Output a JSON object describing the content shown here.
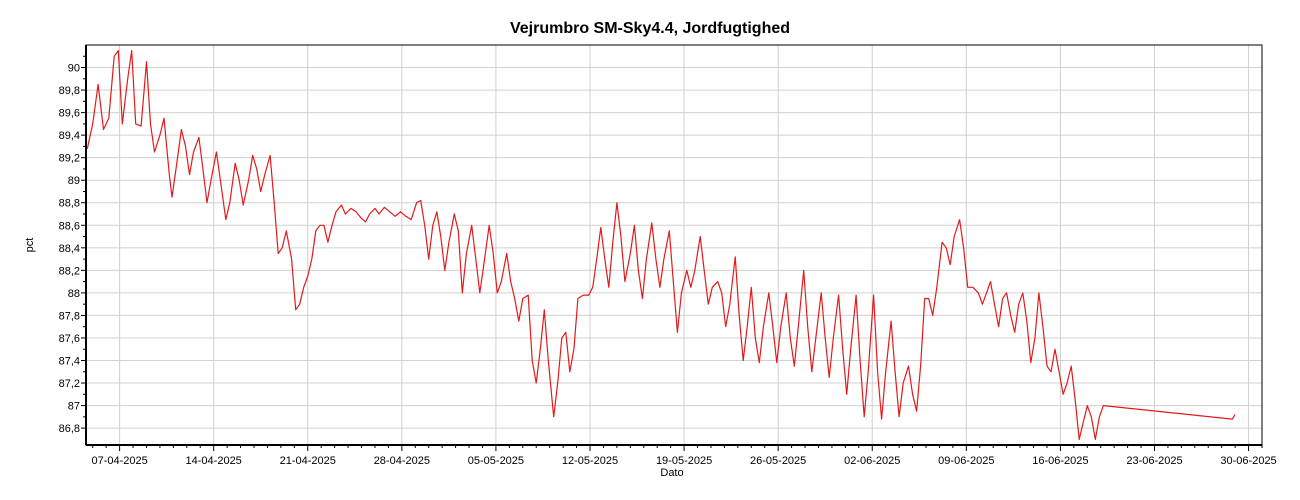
{
  "chart_data": {
    "type": "line",
    "title": "Vejrumbro SM-Sky4.4, Jordfugtighed",
    "xlabel": "Dato",
    "ylabel": "pct",
    "x_ticks": [
      "07-04-2025",
      "14-04-2025",
      "21-04-2025",
      "28-04-2025",
      "05-05-2025",
      "12-05-2025",
      "19-05-2025",
      "26-05-2025",
      "02-06-2025",
      "09-06-2025",
      "16-06-2025",
      "23-06-2025",
      "30-06-2025"
    ],
    "y_ticks": [
      "86,8",
      "87",
      "87,2",
      "87,4",
      "87,6",
      "87,8",
      "88",
      "88,2",
      "88,4",
      "88,6",
      "88,8",
      "89",
      "89,2",
      "89,4",
      "89,6",
      "89,8",
      "90"
    ],
    "xlim_days": [
      -2.5,
      85.0
    ],
    "ylim": [
      86.65,
      90.2
    ],
    "grid": true,
    "legend": "none",
    "line_color": "#e31a1c",
    "series": [
      {
        "points": [
          [
            -2.4,
            89.28
          ],
          [
            -2.0,
            89.5
          ],
          [
            -1.6,
            89.85
          ],
          [
            -1.2,
            89.45
          ],
          [
            -0.8,
            89.55
          ],
          [
            -0.4,
            90.1
          ],
          [
            -0.1,
            90.15
          ],
          [
            0.2,
            89.5
          ],
          [
            0.6,
            89.9
          ],
          [
            0.9,
            90.15
          ],
          [
            1.2,
            89.5
          ],
          [
            1.6,
            89.48
          ],
          [
            2.0,
            90.05
          ],
          [
            2.3,
            89.5
          ],
          [
            2.6,
            89.25
          ],
          [
            3.0,
            89.4
          ],
          [
            3.3,
            89.55
          ],
          [
            3.7,
            89.05
          ],
          [
            3.9,
            88.85
          ],
          [
            4.2,
            89.1
          ],
          [
            4.6,
            89.45
          ],
          [
            4.9,
            89.3
          ],
          [
            5.2,
            89.05
          ],
          [
            5.5,
            89.25
          ],
          [
            5.9,
            89.38
          ],
          [
            6.2,
            89.1
          ],
          [
            6.5,
            88.8
          ],
          [
            6.8,
            89.0
          ],
          [
            7.2,
            89.25
          ],
          [
            7.5,
            89.0
          ],
          [
            7.9,
            88.65
          ],
          [
            8.2,
            88.8
          ],
          [
            8.6,
            89.15
          ],
          [
            8.9,
            89.0
          ],
          [
            9.2,
            88.78
          ],
          [
            9.6,
            89.0
          ],
          [
            9.9,
            89.22
          ],
          [
            10.2,
            89.1
          ],
          [
            10.5,
            88.9
          ],
          [
            10.8,
            89.05
          ],
          [
            11.2,
            89.22
          ],
          [
            11.5,
            88.8
          ],
          [
            11.8,
            88.35
          ],
          [
            12.1,
            88.4
          ],
          [
            12.4,
            88.55
          ],
          [
            12.8,
            88.3
          ],
          [
            13.1,
            87.85
          ],
          [
            13.4,
            87.9
          ],
          [
            13.7,
            88.05
          ],
          [
            14.0,
            88.15
          ],
          [
            14.3,
            88.3
          ],
          [
            14.6,
            88.55
          ],
          [
            14.9,
            88.6
          ],
          [
            15.2,
            88.6
          ],
          [
            15.5,
            88.45
          ],
          [
            15.8,
            88.6
          ],
          [
            16.1,
            88.72
          ],
          [
            16.5,
            88.78
          ],
          [
            16.8,
            88.7
          ],
          [
            17.2,
            88.75
          ],
          [
            17.6,
            88.72
          ],
          [
            18.0,
            88.66
          ],
          [
            18.3,
            88.63
          ],
          [
            18.6,
            88.7
          ],
          [
            19.0,
            88.75
          ],
          [
            19.3,
            88.7
          ],
          [
            19.7,
            88.76
          ],
          [
            20.1,
            88.72
          ],
          [
            20.5,
            88.68
          ],
          [
            20.9,
            88.72
          ],
          [
            21.3,
            88.68
          ],
          [
            21.7,
            88.65
          ],
          [
            22.1,
            88.8
          ],
          [
            22.4,
            88.82
          ],
          [
            22.7,
            88.6
          ],
          [
            23.0,
            88.3
          ],
          [
            23.3,
            88.6
          ],
          [
            23.6,
            88.72
          ],
          [
            23.9,
            88.5
          ],
          [
            24.2,
            88.2
          ],
          [
            24.5,
            88.45
          ],
          [
            24.9,
            88.7
          ],
          [
            25.2,
            88.55
          ],
          [
            25.5,
            88.0
          ],
          [
            25.8,
            88.35
          ],
          [
            26.2,
            88.6
          ],
          [
            26.5,
            88.3
          ],
          [
            26.8,
            88.0
          ],
          [
            27.1,
            88.25
          ],
          [
            27.5,
            88.6
          ],
          [
            27.8,
            88.35
          ],
          [
            28.1,
            88.0
          ],
          [
            28.4,
            88.1
          ],
          [
            28.8,
            88.35
          ],
          [
            29.1,
            88.1
          ],
          [
            29.4,
            87.95
          ],
          [
            29.7,
            87.75
          ],
          [
            30.0,
            87.95
          ],
          [
            30.4,
            87.98
          ],
          [
            30.7,
            87.4
          ],
          [
            31.0,
            87.2
          ],
          [
            31.3,
            87.5
          ],
          [
            31.6,
            87.85
          ],
          [
            31.9,
            87.4
          ],
          [
            32.3,
            86.9
          ],
          [
            32.6,
            87.2
          ],
          [
            32.9,
            87.6
          ],
          [
            33.2,
            87.65
          ],
          [
            33.5,
            87.3
          ],
          [
            33.8,
            87.5
          ],
          [
            34.1,
            87.95
          ],
          [
            34.5,
            87.98
          ],
          [
            34.9,
            87.98
          ],
          [
            35.2,
            88.05
          ],
          [
            35.5,
            88.3
          ],
          [
            35.8,
            88.58
          ],
          [
            36.1,
            88.3
          ],
          [
            36.4,
            88.05
          ],
          [
            36.7,
            88.45
          ],
          [
            37.0,
            88.8
          ],
          [
            37.3,
            88.5
          ],
          [
            37.6,
            88.1
          ],
          [
            38.0,
            88.35
          ],
          [
            38.3,
            88.6
          ],
          [
            38.6,
            88.2
          ],
          [
            38.9,
            87.95
          ],
          [
            39.2,
            88.3
          ],
          [
            39.6,
            88.62
          ],
          [
            39.9,
            88.3
          ],
          [
            40.2,
            88.05
          ],
          [
            40.5,
            88.3
          ],
          [
            40.9,
            88.55
          ],
          [
            41.2,
            88.1
          ],
          [
            41.5,
            87.65
          ],
          [
            41.8,
            88.0
          ],
          [
            42.2,
            88.2
          ],
          [
            42.5,
            88.05
          ],
          [
            42.8,
            88.2
          ],
          [
            43.2,
            88.5
          ],
          [
            43.5,
            88.2
          ],
          [
            43.8,
            87.9
          ],
          [
            44.1,
            88.05
          ],
          [
            44.5,
            88.1
          ],
          [
            44.8,
            88.0
          ],
          [
            45.1,
            87.7
          ],
          [
            45.4,
            87.9
          ],
          [
            45.8,
            88.32
          ],
          [
            46.1,
            87.8
          ],
          [
            46.4,
            87.4
          ],
          [
            46.7,
            87.7
          ],
          [
            47.0,
            88.05
          ],
          [
            47.3,
            87.6
          ],
          [
            47.6,
            87.38
          ],
          [
            47.9,
            87.7
          ],
          [
            48.3,
            88.0
          ],
          [
            48.6,
            87.7
          ],
          [
            48.9,
            87.38
          ],
          [
            49.2,
            87.7
          ],
          [
            49.6,
            88.0
          ],
          [
            49.9,
            87.6
          ],
          [
            50.2,
            87.35
          ],
          [
            50.5,
            87.7
          ],
          [
            50.9,
            88.2
          ],
          [
            51.2,
            87.7
          ],
          [
            51.5,
            87.3
          ],
          [
            51.8,
            87.6
          ],
          [
            52.2,
            88.0
          ],
          [
            52.5,
            87.6
          ],
          [
            52.8,
            87.25
          ],
          [
            53.1,
            87.6
          ],
          [
            53.5,
            87.98
          ],
          [
            53.8,
            87.5
          ],
          [
            54.1,
            87.1
          ],
          [
            54.4,
            87.5
          ],
          [
            54.8,
            87.98
          ],
          [
            55.1,
            87.4
          ],
          [
            55.4,
            86.9
          ],
          [
            55.7,
            87.3
          ],
          [
            56.1,
            87.98
          ],
          [
            56.4,
            87.3
          ],
          [
            56.7,
            86.88
          ],
          [
            57.0,
            87.3
          ],
          [
            57.4,
            87.75
          ],
          [
            57.7,
            87.3
          ],
          [
            58.0,
            86.9
          ],
          [
            58.3,
            87.2
          ],
          [
            58.7,
            87.35
          ],
          [
            59.0,
            87.1
          ],
          [
            59.3,
            86.95
          ],
          [
            59.6,
            87.35
          ],
          [
            59.9,
            87.95
          ],
          [
            60.2,
            87.95
          ],
          [
            60.5,
            87.8
          ],
          [
            60.8,
            88.05
          ],
          [
            61.2,
            88.45
          ],
          [
            61.5,
            88.4
          ],
          [
            61.8,
            88.25
          ],
          [
            62.1,
            88.5
          ],
          [
            62.5,
            88.65
          ],
          [
            62.8,
            88.4
          ],
          [
            63.1,
            88.05
          ],
          [
            63.5,
            88.05
          ],
          [
            63.9,
            88.0
          ],
          [
            64.2,
            87.9
          ],
          [
            64.5,
            88.0
          ],
          [
            64.8,
            88.1
          ],
          [
            65.1,
            87.9
          ],
          [
            65.4,
            87.7
          ],
          [
            65.7,
            87.95
          ],
          [
            66.0,
            88.0
          ],
          [
            66.3,
            87.8
          ],
          [
            66.6,
            87.65
          ],
          [
            66.9,
            87.9
          ],
          [
            67.2,
            88.0
          ],
          [
            67.5,
            87.75
          ],
          [
            67.8,
            87.38
          ],
          [
            68.1,
            87.6
          ],
          [
            68.4,
            88.0
          ],
          [
            68.7,
            87.7
          ],
          [
            69.0,
            87.35
          ],
          [
            69.3,
            87.3
          ],
          [
            69.6,
            87.5
          ],
          [
            69.9,
            87.3
          ],
          [
            70.2,
            87.1
          ],
          [
            70.5,
            87.2
          ],
          [
            70.8,
            87.35
          ],
          [
            71.1,
            87.05
          ],
          [
            71.4,
            86.7
          ],
          [
            71.7,
            86.85
          ],
          [
            72.0,
            87.0
          ],
          [
            72.3,
            86.9
          ],
          [
            72.6,
            86.7
          ],
          [
            72.9,
            86.9
          ],
          [
            73.2,
            87.0
          ],
          [
            82.8,
            86.88
          ],
          [
            83.0,
            86.92
          ]
        ]
      }
    ]
  }
}
